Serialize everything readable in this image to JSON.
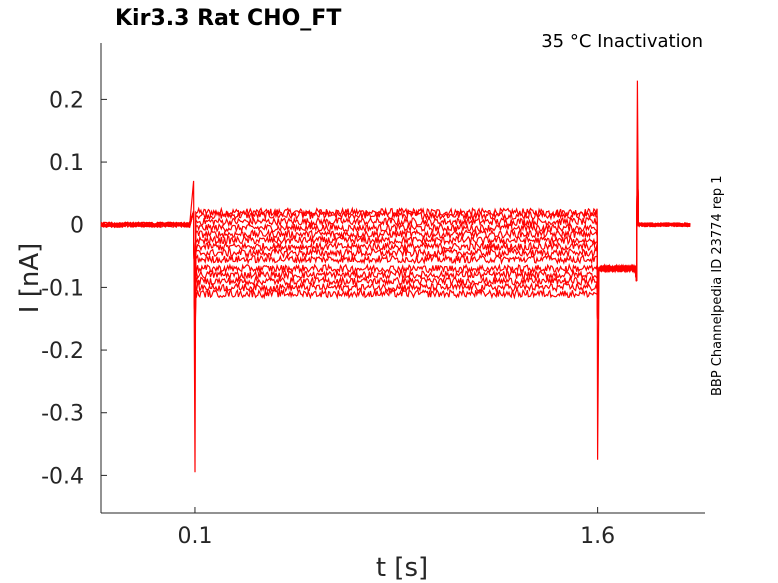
{
  "chart_data": {
    "type": "line",
    "title": "Kir3.3  Rat  CHO_FT",
    "annotation": "35 °C  Inactivation",
    "side_label": "BBP Channelpedia ID 23774 rep 1",
    "xlabel": "t [s]",
    "ylabel": "I [nA]",
    "xlim": [
      -0.25,
      2.0
    ],
    "ylim": [
      -0.46,
      0.29
    ],
    "x_ticks": [
      {
        "value": 0.1,
        "label": "0.1"
      },
      {
        "value": 1.6,
        "label": "1.6"
      }
    ],
    "y_ticks": [
      {
        "value": 0.2,
        "label": "0.2"
      },
      {
        "value": 0.1,
        "label": "0.1"
      },
      {
        "value": 0,
        "label": "0"
      },
      {
        "value": -0.1,
        "label": "-0.1"
      },
      {
        "value": -0.2,
        "label": "-0.2"
      },
      {
        "value": -0.3,
        "label": "-0.3"
      },
      {
        "value": -0.4,
        "label": "-0.4"
      }
    ],
    "grid": false,
    "series_color": "#ff0000",
    "baseline_start_nA": 0.0,
    "step_on_s": 0.1,
    "step_off_s": 1.6,
    "trace_end_s": 1.76,
    "sweep_levels_nA": [
      0.02,
      0.015,
      0.005,
      -0.005,
      -0.015,
      -0.025,
      -0.035,
      -0.045,
      -0.055,
      -0.07,
      -0.08,
      -0.09,
      -0.1,
      -0.11
    ],
    "onset_transient_nA": [
      0.07,
      -0.395
    ],
    "offset_transient_nA": [
      -0.375
    ],
    "post_step_level_nA": -0.07,
    "return_spike_nA": [
      0.23,
      -0.09
    ],
    "return_level_nA": 0.0
  }
}
